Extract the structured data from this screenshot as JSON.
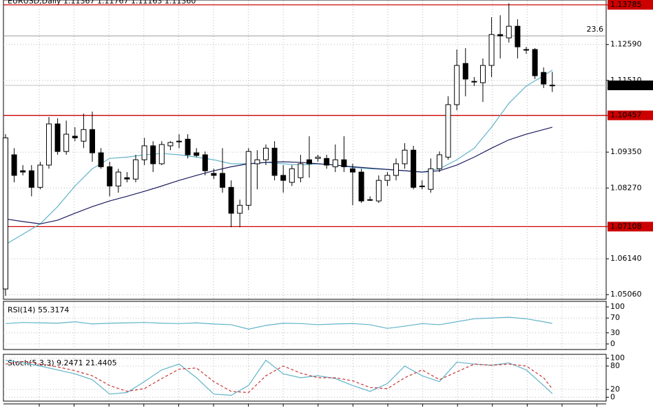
{
  "chart_data": [
    {
      "type": "candlestick",
      "title": "EURUSD,Daily  1.11367 1.11767 1.11163 1.11360",
      "open": [
        1.0523,
        1.0927,
        1.0879,
        1.0879,
        1.0829,
        1.0896,
        1.102,
        1.0937,
        1.0983,
        1.0968,
        1.1003,
        1.0933,
        1.0891,
        1.0833,
        1.0858,
        1.0854,
        1.0912,
        1.0954,
        1.09,
        1.0954,
        1.0968,
        1.0974,
        1.0933,
        1.0927,
        1.0871,
        1.0871,
        1.0829,
        1.0751,
        1.0775,
        1.09,
        1.0912,
        1.0947,
        1.0865,
        1.0844,
        1.0858,
        1.0912,
        1.0916,
        1.0916,
        1.0891,
        1.0912,
        1.0885,
        1.0875,
        1.0792,
        1.0788,
        1.085,
        1.0865,
        1.09,
        1.0941,
        1.0833,
        1.0823,
        1.0885,
        1.092,
        1.1078,
        1.1202,
        1.1148,
        1.1144,
        1.1196,
        1.1289,
        1.1279,
        1.1314,
        1.1244,
        1.1244,
        1.1175,
        1.11367
      ],
      "high": [
        1.0989,
        1.0947,
        1.0896,
        1.0896,
        1.0906,
        1.1041,
        1.1037,
        1.103,
        1.101,
        1.1051,
        1.1057,
        1.0947,
        1.0906,
        1.0885,
        1.0875,
        1.0927,
        1.0978,
        1.0968,
        1.0968,
        1.0968,
        1.0989,
        1.0989,
        1.0947,
        1.0937,
        1.0885,
        1.0947,
        1.085,
        1.0792,
        1.0947,
        1.0941,
        1.0958,
        1.0968,
        1.0896,
        1.0896,
        1.0927,
        1.0983,
        1.0927,
        1.0927,
        1.0958,
        1.0983,
        1.09,
        1.0885,
        1.0802,
        1.0865,
        1.0875,
        1.0916,
        1.0962,
        1.0954,
        1.085,
        1.0916,
        1.0937,
        1.1103,
        1.1244,
        1.1248,
        1.1161,
        1.1217,
        1.1341,
        1.1347,
        1.1383,
        1.1335,
        1.1252,
        1.1248,
        1.119,
        1.11767
      ],
      "low": [
        1.0502,
        1.0844,
        1.0865,
        1.0802,
        1.0823,
        1.0885,
        1.0927,
        1.0927,
        1.0968,
        1.0947,
        1.0906,
        1.0885,
        1.0802,
        1.0813,
        1.0844,
        1.0844,
        1.0896,
        1.0875,
        1.0896,
        1.0941,
        1.0947,
        1.0916,
        1.092,
        1.0865,
        1.0854,
        1.0813,
        1.0709,
        1.0709,
        1.0761,
        1.0823,
        1.0896,
        1.085,
        1.0813,
        1.0833,
        1.0844,
        1.0858,
        1.0906,
        1.0885,
        1.0875,
        1.0875,
        1.0775,
        1.0782,
        1.0788,
        1.0782,
        1.0833,
        1.085,
        1.0885,
        1.0823,
        1.0823,
        1.0813,
        1.0875,
        1.0912,
        1.1061,
        1.1103,
        1.1134,
        1.1086,
        1.1161,
        1.1217,
        1.1265,
        1.1217,
        1.1231,
        1.1155,
        1.1128,
        1.11163
      ],
      "close": [
        1.0978,
        1.0865,
        1.0875,
        1.0829,
        1.0896,
        1.102,
        1.0937,
        1.0989,
        1.0978,
        1.1003,
        1.0933,
        1.0891,
        1.0833,
        1.0875,
        1.0854,
        1.0912,
        1.0954,
        1.09,
        1.0958,
        1.0964,
        1.0968,
        1.0927,
        1.0925,
        1.0879,
        1.0865,
        1.0829,
        1.0751,
        1.0775,
        1.0937,
        1.0912,
        1.0947,
        1.0865,
        1.085,
        1.0885,
        1.09,
        1.09,
        1.092,
        1.0896,
        1.0912,
        1.0891,
        1.0875,
        1.0788,
        1.0792,
        1.085,
        1.0865,
        1.09,
        1.0941,
        1.0829,
        1.0833,
        1.0885,
        1.0927,
        1.1078,
        1.1196,
        1.1155,
        1.1148,
        1.1196,
        1.1289,
        1.1285,
        1.1314,
        1.1252,
        1.1244,
        1.1165,
        1.114,
        1.1136
      ],
      "up_color": "#ffffff",
      "down_color": "#000000",
      "moving_averages": [
        {
          "color": "#5fb3c8",
          "x": [
            0,
            2,
            4,
            6,
            8,
            10,
            12,
            14,
            16,
            18,
            20,
            22,
            24,
            26,
            28,
            30,
            32,
            34,
            36,
            38,
            40,
            42,
            44,
            46,
            48,
            50,
            52,
            54,
            56,
            58,
            60,
            62,
            63
          ],
          "values": [
            1.0657,
            1.0688,
            1.0719,
            1.0771,
            1.0833,
            1.0885,
            1.0916,
            1.092,
            1.0927,
            1.0931,
            1.0927,
            1.092,
            1.0912,
            1.09,
            1.09,
            1.0904,
            1.09,
            1.0896,
            1.09,
            1.0896,
            1.0889,
            1.0885,
            1.0883,
            1.0879,
            1.0875,
            1.0885,
            1.0912,
            1.0947,
            1.101,
            1.1082,
            1.1134,
            1.1165,
            1.1182
          ]
        },
        {
          "color": "#1a1a5e",
          "x": [
            0,
            2,
            4,
            6,
            8,
            10,
            12,
            14,
            16,
            18,
            20,
            22,
            24,
            26,
            28,
            30,
            32,
            34,
            36,
            38,
            40,
            42,
            44,
            46,
            48,
            50,
            52,
            54,
            56,
            58,
            60,
            62,
            63
          ],
          "values": [
            1.0734,
            1.0726,
            1.0719,
            1.073,
            1.0751,
            1.0771,
            1.0788,
            1.0802,
            1.0817,
            1.0833,
            1.085,
            1.0865,
            1.0879,
            1.0891,
            1.09,
            1.0904,
            1.0906,
            1.0904,
            1.09,
            1.0896,
            1.0891,
            1.0887,
            1.0883,
            1.0879,
            1.0875,
            1.0879,
            1.0896,
            1.092,
            1.0947,
            1.0972,
            1.0989,
            1.1003,
            1.101
          ]
        }
      ],
      "ylim": [
        1.0492,
        1.1393
      ],
      "yticks": [
        {
          "value": 1.1259,
          "label": "1.12590"
        },
        {
          "value": 1.1151,
          "label": "1.11510"
        },
        {
          "value": 1.0935,
          "label": "1.09350"
        },
        {
          "value": 1.0827,
          "label": "1.08270"
        },
        {
          "value": 1.0614,
          "label": "1.06140"
        },
        {
          "value": 1.0506,
          "label": "1.05060"
        }
      ],
      "levels": [
        1.13785,
        1.10457,
        1.07108
      ],
      "level_color": "#cc0000",
      "fib": {
        "value": 1.1285,
        "label": "23.6"
      },
      "last_price": {
        "value": 1.1136,
        "label": "1.11360"
      },
      "grid": true
    },
    {
      "type": "line",
      "title": "RSI(14) 55.3174",
      "x": [
        0,
        2,
        4,
        6,
        8,
        10,
        12,
        14,
        16,
        18,
        20,
        22,
        24,
        26,
        28,
        30,
        32,
        34,
        36,
        38,
        40,
        42,
        44,
        46,
        48,
        50,
        52,
        54,
        56,
        58,
        60,
        62,
        63
      ],
      "series": [
        {
          "color": "#5fb3c8",
          "values": [
            55,
            58,
            57,
            56,
            60,
            54,
            56,
            57,
            58,
            56,
            55,
            57,
            54,
            52,
            40,
            50,
            56,
            55,
            52,
            54,
            55,
            52,
            42,
            48,
            55,
            52,
            60,
            68,
            70,
            72,
            68,
            60,
            55.3174
          ]
        }
      ],
      "ylim": [
        -15,
        115
      ],
      "yticks": [
        100,
        70,
        30,
        0
      ],
      "grid": true
    },
    {
      "type": "line",
      "title": "Stoch(5,3,3) 9.2471 21.4405",
      "x": [
        0,
        2,
        4,
        6,
        8,
        10,
        12,
        14,
        16,
        18,
        20,
        22,
        24,
        26,
        28,
        30,
        32,
        34,
        36,
        38,
        40,
        42,
        44,
        46,
        48,
        50,
        52,
        54,
        56,
        58,
        60,
        62,
        63
      ],
      "series": [
        {
          "color": "#5fb3c8",
          "values": [
            95,
            88,
            80,
            70,
            60,
            45,
            8,
            12,
            40,
            70,
            85,
            50,
            8,
            5,
            30,
            95,
            60,
            50,
            55,
            48,
            30,
            15,
            35,
            80,
            55,
            40,
            90,
            85,
            82,
            88,
            70,
            30,
            9.2471
          ]
        },
        {
          "color": "#cc3333",
          "dash": true,
          "values": [
            85,
            92,
            85,
            78,
            68,
            55,
            30,
            15,
            22,
            48,
            72,
            75,
            40,
            15,
            12,
            55,
            80,
            62,
            50,
            50,
            42,
            25,
            22,
            50,
            70,
            45,
            65,
            85,
            82,
            85,
            80,
            50,
            21.4405
          ]
        }
      ],
      "ylim": [
        -10,
        110
      ],
      "yticks": [
        100,
        80,
        20,
        0
      ],
      "grid": true
    }
  ]
}
